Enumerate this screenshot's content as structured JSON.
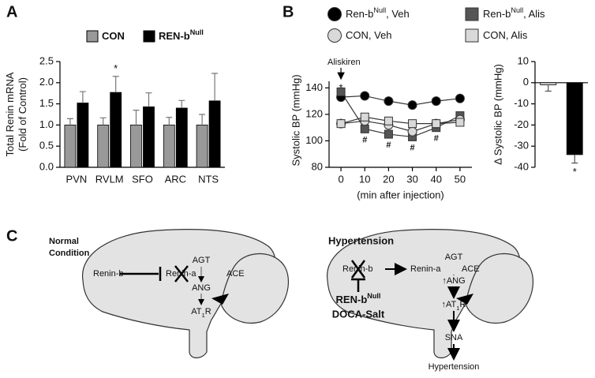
{
  "panels": [
    "A",
    "B",
    "C"
  ],
  "chart_data": [
    {
      "type": "bar",
      "ylabel": [
        "Total Renin mRNA",
        "(Fold of Control)"
      ],
      "categories": [
        "PVN",
        "RVLM",
        "SFO",
        "ARC",
        "NTS"
      ],
      "series": [
        {
          "name": "CON",
          "color": "#999999",
          "values": [
            1.0,
            1.0,
            1.0,
            1.0,
            1.0
          ],
          "errors": [
            0.15,
            0.17,
            0.35,
            0.18,
            0.25
          ]
        },
        {
          "name": "REN-b",
          "name_superscript": "Null",
          "color": "#000000",
          "values": [
            1.52,
            1.77,
            1.43,
            1.4,
            1.57
          ],
          "errors": [
            0.27,
            0.38,
            0.33,
            0.18,
            0.65
          ]
        }
      ],
      "ylim": [
        0,
        2.5
      ],
      "yticks": [
        {
          "value": 0,
          "label": "0.0"
        },
        {
          "value": 0.5,
          "label": "0.5"
        },
        {
          "value": 1,
          "label": "1.0"
        },
        {
          "value": 1.5,
          "label": "1.5"
        },
        {
          "value": 2,
          "label": "2.0"
        },
        {
          "value": 2.5,
          "label": "2.5"
        }
      ],
      "annotations": [
        "*"
      ]
    },
    {
      "type": "line",
      "xlabel": "(min after injection)",
      "ylabel": "Systolic BP (mmHg)",
      "x": [
        0,
        10,
        20,
        30,
        40,
        50
      ],
      "series": [
        {
          "name": "Ren-b",
          "name_superscript": "Null",
          "name_suffix": ", Veh",
          "marker": "circle",
          "color": "#000000",
          "values": [
            133,
            134,
            130,
            127,
            130,
            132
          ]
        },
        {
          "name": "Ren-b",
          "name_superscript": "Null",
          "name_suffix": ", Alis",
          "marker": "square",
          "color": "#555555",
          "values": [
            137,
            109,
            105,
            103,
            110,
            119
          ]
        },
        {
          "name": "CON, Veh",
          "marker": "circle",
          "color": "#d9d9d9",
          "values": [
            113,
            115,
            112,
            107,
            113,
            116
          ]
        },
        {
          "name": "CON, Alis",
          "marker": "square",
          "color": "#d9d9d9",
          "values": [
            113,
            118,
            115,
            113,
            113,
            114
          ]
        }
      ],
      "xlim": [
        -5,
        55
      ],
      "xticks": [
        0,
        10,
        20,
        30,
        40,
        50
      ],
      "ylim": [
        80,
        145
      ],
      "yticks": [
        80,
        100,
        120,
        140
      ],
      "annotations": [
        "Aliskiren",
        "*",
        "#",
        "#",
        "#",
        "#"
      ]
    },
    {
      "type": "bar",
      "ylabel": "Δ Systolic BP (mmHg)",
      "categories": [
        null,
        null
      ],
      "values": [
        -1,
        -34
      ],
      "errors": [
        3,
        4
      ],
      "colors": [
        "#d9d9d9",
        "#000000"
      ],
      "ylim": [
        -40,
        10
      ],
      "yticks": [
        10,
        0,
        -10,
        -20,
        -30,
        -40
      ],
      "annotations": [
        "*"
      ]
    }
  ],
  "diagrams": {
    "normal": {
      "title": [
        "Normal",
        "Condition"
      ],
      "renin_b": "Renin-b",
      "renin_a": "Renin-a",
      "agt": "AGT",
      "ace": "ACE",
      "ang": "ANG",
      "at1r": {
        "main": "AT",
        "sub": "1",
        "tail": "R"
      }
    },
    "hypertension": {
      "title": "Hypertension",
      "renin_b": "Renin-b",
      "renin_a": "Renin-a",
      "agt": "AGT",
      "ace": "ACE",
      "ang": "↑ANG",
      "at1r": {
        "main": "↑AT",
        "sub": "1",
        "tail": "R"
      },
      "sna": "SNA",
      "outcome": "Hypertension",
      "blocker": {
        "main": "REN-b",
        "sup": "Null"
      },
      "diet": "DOCA-Salt"
    }
  }
}
